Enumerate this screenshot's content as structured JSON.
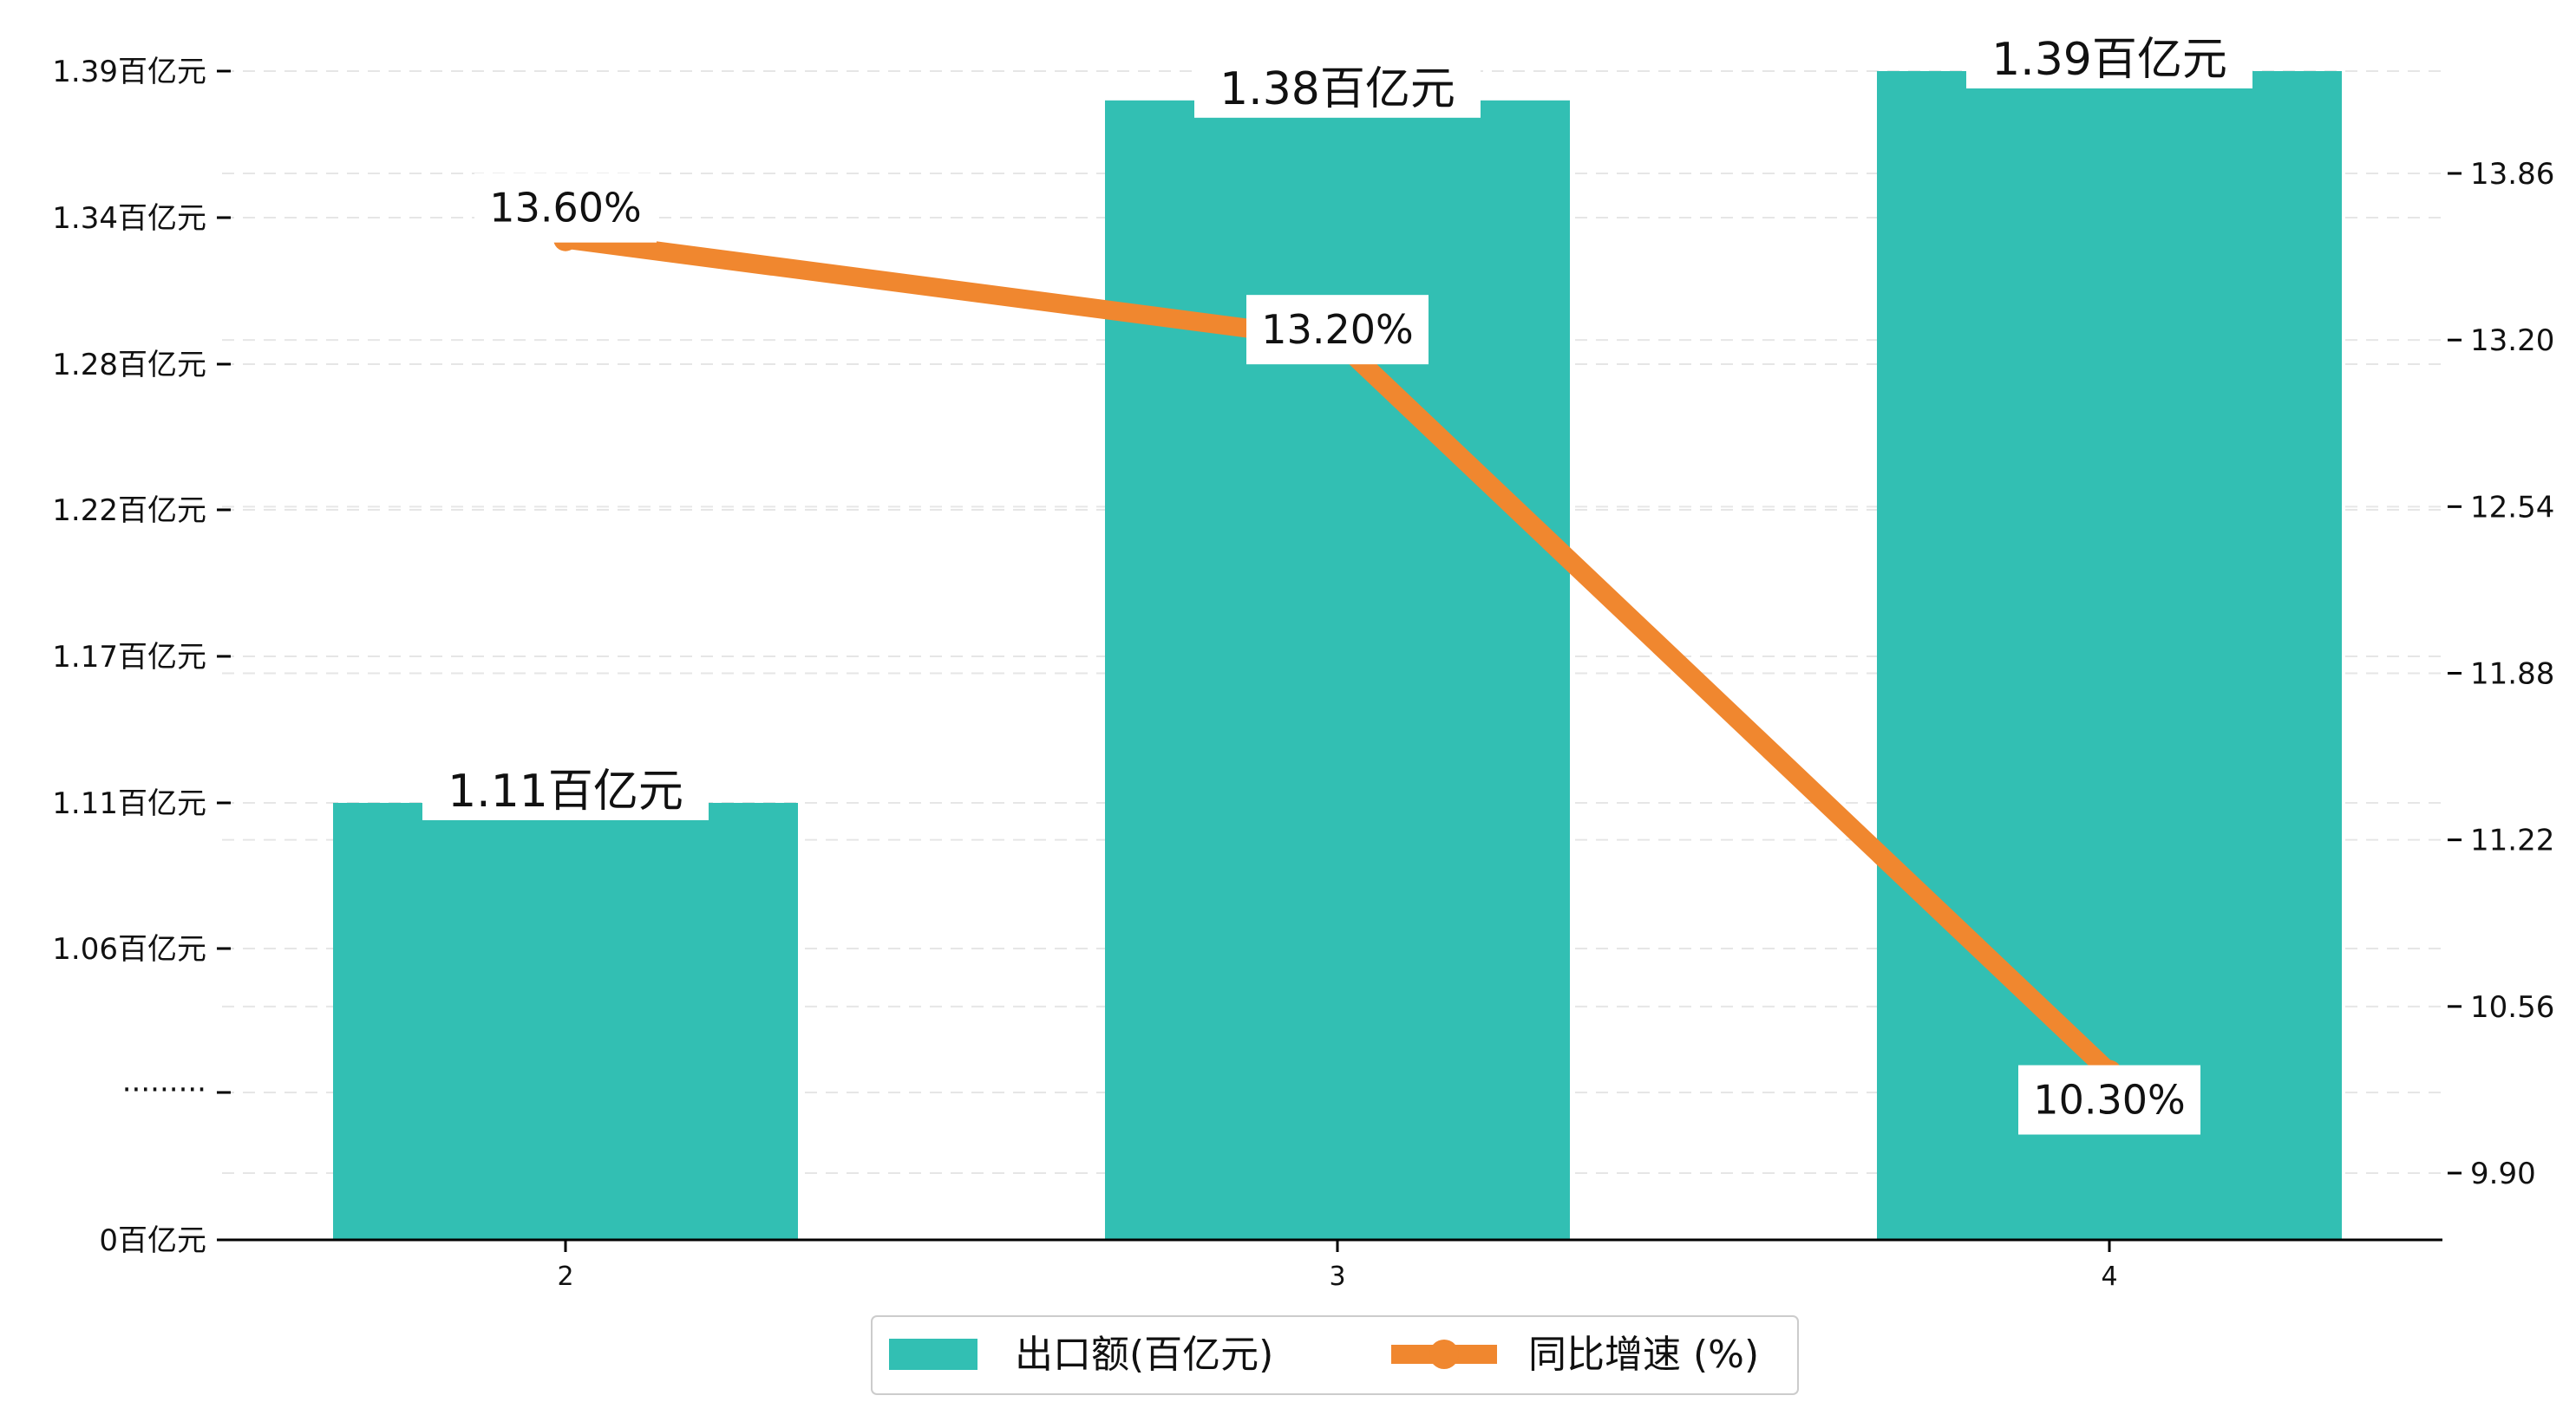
{
  "chart_data": {
    "type": "bar",
    "categories": [
      "2",
      "3",
      "4"
    ],
    "series": [
      {
        "name": "出口额(百亿元)",
        "type": "bar",
        "axis": "left",
        "values": [
          1.11,
          1.38,
          1.39
        ],
        "value_labels": [
          "1.11百亿元",
          "1.38百亿元",
          "1.39百亿元"
        ]
      },
      {
        "name": "同比增速 (%)",
        "type": "line",
        "axis": "right",
        "values": [
          13.6,
          13.2,
          10.3
        ],
        "value_labels": [
          "13.60%",
          "13.20%",
          "10.30%"
        ]
      }
    ],
    "left_axis": {
      "ticks": [
        {
          "value": 0,
          "label": "0百亿元"
        },
        {
          "value": 1.06,
          "label": "1.06百亿元"
        },
        {
          "value": 1.11,
          "label": "1.11百亿元"
        },
        {
          "value": 1.17,
          "label": "1.17百亿元"
        },
        {
          "value": 1.22,
          "label": "1.22百亿元"
        },
        {
          "value": 1.28,
          "label": "1.28百亿元"
        },
        {
          "value": 1.34,
          "label": "1.34百亿元"
        },
        {
          "value": 1.39,
          "label": "1.39百亿元"
        }
      ],
      "break_label": "·········"
    },
    "right_axis": {
      "ticks": [
        9.9,
        10.56,
        11.22,
        11.88,
        12.54,
        13.2,
        13.86
      ],
      "tick_labels": [
        "9.90",
        "10.56",
        "11.22",
        "11.88",
        "12.54",
        "13.20",
        "13.86"
      ],
      "ylim": [
        9.65,
        14.8
      ]
    },
    "grid": true,
    "legend_position": "bottom-center",
    "colors": {
      "bar": "#32bfb3",
      "line": "#f0872f"
    }
  }
}
